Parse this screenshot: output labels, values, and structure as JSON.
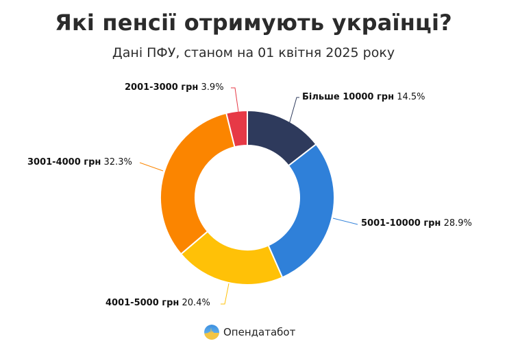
{
  "header": {
    "title": "Які пенсії отримують українці?",
    "subtitle": "Дані ПФУ, станом на 01 квітня 2025 року"
  },
  "brand": {
    "name": "Опендатабот"
  },
  "labels": [
    {
      "category": "Більше 10000 грн",
      "pct": "14.5%"
    },
    {
      "category": "5001-10000 грн",
      "pct": "28.9%"
    },
    {
      "category": "4001-5000 грн",
      "pct": "20.4%"
    },
    {
      "category": "3001-4000 грн",
      "pct": "32.3%"
    },
    {
      "category": "2001-3000 грн",
      "pct": "3.9%"
    }
  ],
  "chart_data": {
    "type": "pie",
    "subtype": "donut",
    "title": "Які пенсії отримують українці?",
    "subtitle": "Дані ПФУ, станом на 01 квітня 2025 року",
    "categories": [
      "Більше 10000 грн",
      "5001-10000 грн",
      "4001-5000 грн",
      "3001-4000 грн",
      "2001-3000 грн"
    ],
    "values": [
      14.5,
      28.9,
      20.4,
      32.3,
      3.9
    ],
    "unit": "%",
    "colors": [
      "#2e3a5c",
      "#2f80d9",
      "#ffc107",
      "#fb8500",
      "#e63946"
    ],
    "start_angle": "12 o'clock",
    "direction": "clockwise",
    "legend": "none (outside labels with leader lines)",
    "source": "Опендатабот"
  }
}
